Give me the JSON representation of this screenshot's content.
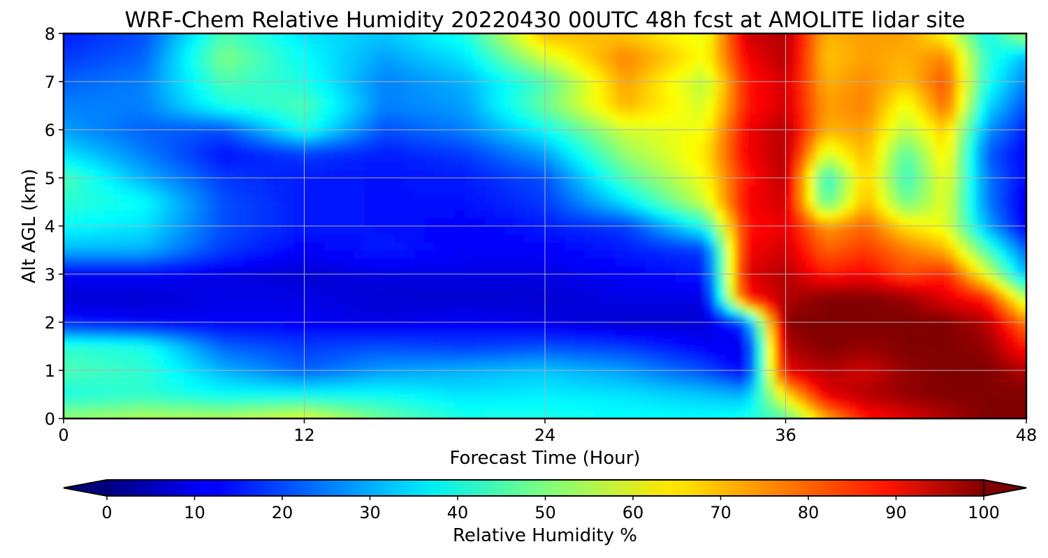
{
  "chart_data": {
    "type": "heatmap",
    "title": "WRF-Chem Relative Humidity 20220430 00UTC 48h fcst at AMOLITE lidar site",
    "xlabel": "Forecast Time (Hour)",
    "ylabel": "Alt AGL (km)",
    "xlim": [
      0,
      48
    ],
    "ylim": [
      0,
      8
    ],
    "xticks": [
      "0",
      "12",
      "24",
      "36",
      "48"
    ],
    "yticks": [
      "0",
      "1",
      "2",
      "3",
      "4",
      "5",
      "6",
      "7",
      "8"
    ],
    "grid": true,
    "colormap": "jet",
    "colorbar": {
      "label": "Relative Humidity %",
      "range": [
        0,
        100
      ],
      "ticks": [
        "0",
        "10",
        "20",
        "30",
        "40",
        "50",
        "60",
        "70",
        "80",
        "90",
        "100"
      ],
      "extend": "both",
      "placement": "bottom"
    },
    "x": [
      0,
      4,
      8,
      12,
      16,
      20,
      24,
      28,
      32,
      34,
      36,
      38,
      40,
      42,
      44,
      46,
      48
    ],
    "y": [
      0,
      0.5,
      1,
      1.5,
      2,
      2.5,
      3,
      3.5,
      4,
      4.5,
      5,
      5.5,
      6,
      6.5,
      7,
      7.5,
      8
    ],
    "z": [
      [
        52,
        55,
        55,
        60,
        48,
        40,
        40,
        38,
        38,
        40,
        45,
        70,
        85,
        90,
        95,
        100,
        100
      ],
      [
        40,
        42,
        38,
        38,
        38,
        35,
        36,
        35,
        32,
        30,
        65,
        90,
        95,
        98,
        100,
        100,
        100
      ],
      [
        45,
        42,
        30,
        22,
        28,
        30,
        32,
        28,
        20,
        12,
        90,
        95,
        92,
        98,
        100,
        100,
        95
      ],
      [
        42,
        40,
        22,
        18,
        20,
        18,
        20,
        18,
        12,
        10,
        95,
        100,
        98,
        100,
        100,
        98,
        85
      ],
      [
        15,
        12,
        12,
        12,
        10,
        12,
        10,
        8,
        8,
        20,
        100,
        100,
        100,
        100,
        100,
        95,
        75
      ],
      [
        8,
        8,
        10,
        10,
        8,
        8,
        8,
        10,
        10,
        85,
        95,
        100,
        100,
        98,
        90,
        85,
        55
      ],
      [
        12,
        12,
        10,
        8,
        10,
        10,
        10,
        12,
        15,
        90,
        95,
        85,
        88,
        80,
        85,
        60,
        30
      ],
      [
        30,
        30,
        18,
        12,
        15,
        12,
        12,
        15,
        18,
        88,
        92,
        78,
        82,
        76,
        70,
        45,
        22
      ],
      [
        38,
        35,
        20,
        15,
        14,
        12,
        15,
        18,
        40,
        85,
        90,
        72,
        78,
        65,
        60,
        30,
        10
      ],
      [
        42,
        38,
        20,
        15,
        14,
        14,
        18,
        35,
        58,
        88,
        92,
        45,
        70,
        48,
        60,
        25,
        10
      ],
      [
        45,
        30,
        18,
        15,
        14,
        15,
        20,
        45,
        62,
        85,
        95,
        40,
        68,
        42,
        62,
        25,
        12
      ],
      [
        35,
        25,
        14,
        18,
        15,
        18,
        28,
        52,
        65,
        88,
        95,
        58,
        70,
        45,
        65,
        22,
        12
      ],
      [
        28,
        22,
        20,
        40,
        20,
        25,
        38,
        58,
        62,
        88,
        95,
        70,
        72,
        55,
        68,
        28,
        15
      ],
      [
        25,
        25,
        40,
        45,
        25,
        28,
        48,
        70,
        58,
        85,
        92,
        72,
        75,
        60,
        78,
        35,
        20
      ],
      [
        22,
        25,
        45,
        40,
        25,
        30,
        45,
        72,
        55,
        85,
        92,
        70,
        74,
        68,
        80,
        40,
        25
      ],
      [
        18,
        22,
        50,
        38,
        28,
        35,
        58,
        75,
        62,
        88,
        95,
        68,
        72,
        70,
        75,
        42,
        30
      ],
      [
        15,
        20,
        45,
        35,
        32,
        40,
        70,
        68,
        60,
        92,
        95,
        70,
        72,
        72,
        62,
        38,
        55
      ]
    ]
  }
}
